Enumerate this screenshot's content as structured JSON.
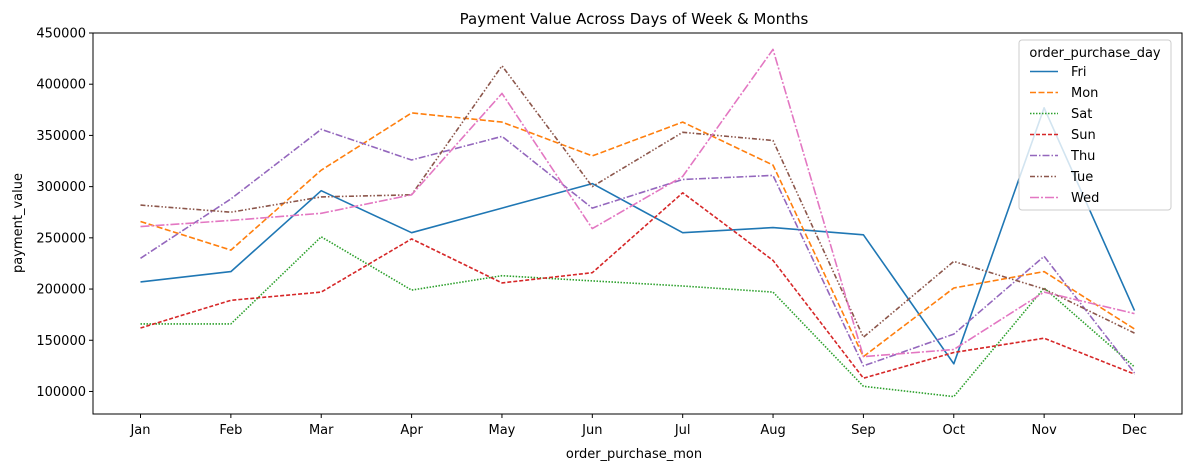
{
  "chart_data": {
    "type": "line",
    "title": "Payment Value Across Days of Week & Months",
    "xlabel": "order_purchase_mon",
    "ylabel": "payment_value",
    "categories": [
      "Jan",
      "Feb",
      "Mar",
      "Apr",
      "May",
      "Jun",
      "Jul",
      "Aug",
      "Sep",
      "Oct",
      "Nov",
      "Dec"
    ],
    "ylim": [
      78000,
      450000
    ],
    "yticks": [
      100000,
      150000,
      200000,
      250000,
      300000,
      350000,
      400000,
      450000
    ],
    "grid": false,
    "legend": {
      "title": "order_purchase_day",
      "placement": "top-right"
    },
    "series": [
      {
        "name": "Fri",
        "color": "#1f77b4",
        "dash": "solid",
        "values": [
          207000,
          217000,
          296000,
          255000,
          279000,
          303000,
          255000,
          260000,
          253000,
          127000,
          377000,
          179000
        ]
      },
      {
        "name": "Mon",
        "color": "#ff7f0e",
        "dash": "dashed",
        "values": [
          266000,
          238000,
          316000,
          372000,
          363000,
          330000,
          363000,
          321000,
          134000,
          201000,
          217000,
          161000
        ]
      },
      {
        "name": "Sat",
        "color": "#2ca02c",
        "dash": "dotted",
        "values": [
          166000,
          166000,
          251000,
          199000,
          213000,
          208000,
          203000,
          197000,
          105000,
          95000,
          201000,
          124000
        ]
      },
      {
        "name": "Sun",
        "color": "#d62728",
        "dash": "densedash",
        "values": [
          162000,
          189000,
          197000,
          249000,
          206000,
          216000,
          294000,
          228000,
          113000,
          138000,
          152000,
          117000
        ]
      },
      {
        "name": "Thu",
        "color": "#9467bd",
        "dash": "dashdot",
        "values": [
          230000,
          288000,
          356000,
          326000,
          349000,
          279000,
          307000,
          311000,
          125000,
          156000,
          232000,
          118000
        ]
      },
      {
        "name": "Tue",
        "color": "#8c564b",
        "dash": "dashdotdot",
        "values": [
          282000,
          275000,
          290000,
          292000,
          418000,
          300000,
          353000,
          345000,
          153000,
          227000,
          200000,
          157000
        ]
      },
      {
        "name": "Wed",
        "color": "#e377c2",
        "dash": "longdashdot",
        "values": [
          261000,
          267000,
          274000,
          292000,
          391000,
          259000,
          310000,
          434000,
          134000,
          141000,
          197000,
          176000
        ]
      }
    ]
  }
}
